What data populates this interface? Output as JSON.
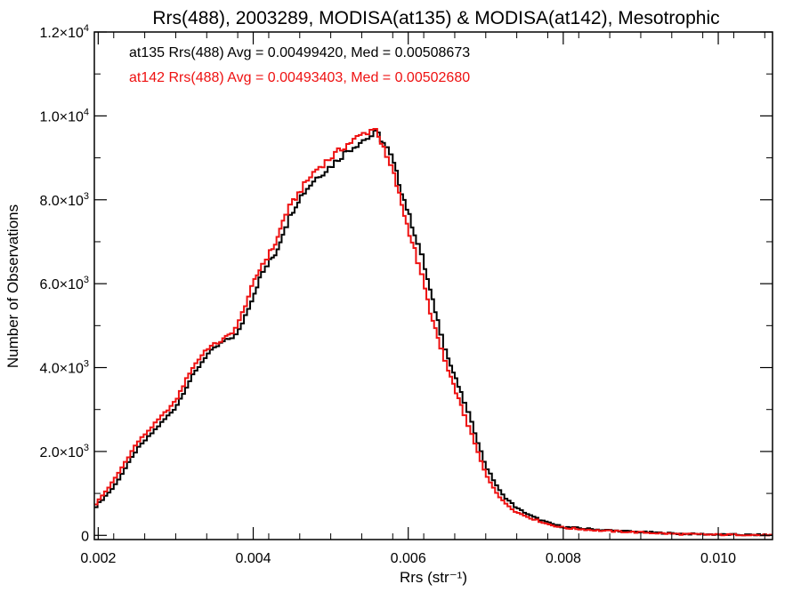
{
  "chart_data": {
    "type": "line",
    "style": "histogram-step",
    "title": "Rrs(488), 2003289, MODISA(at135) & MODISA(at142), Mesotrophic",
    "xlabel": "Rrs (str⁻¹)",
    "ylabel": "Number of Observations",
    "xlim": [
      0.00195,
      0.0107
    ],
    "ylim": [
      -100,
      12000
    ],
    "x_ticks": [
      {
        "value": 0.002,
        "label": "0.002"
      },
      {
        "value": 0.004,
        "label": "0.004"
      },
      {
        "value": 0.006,
        "label": "0.006"
      },
      {
        "value": 0.008,
        "label": "0.008"
      },
      {
        "value": 0.01,
        "label": "0.010"
      }
    ],
    "y_ticks": [
      {
        "value": 0,
        "mantissa": "0",
        "exp": ""
      },
      {
        "value": 2000,
        "mantissa": "2.0×10",
        "exp": "3"
      },
      {
        "value": 4000,
        "mantissa": "4.0×10",
        "exp": "3"
      },
      {
        "value": 6000,
        "mantissa": "6.0×10",
        "exp": "3"
      },
      {
        "value": 8000,
        "mantissa": "8.0×10",
        "exp": "3"
      },
      {
        "value": 10000,
        "mantissa": "1.0×10",
        "exp": "4"
      },
      {
        "value": 12000,
        "mantissa": "1.2×10",
        "exp": "4"
      }
    ],
    "grid": false,
    "legend_position": "top-left",
    "annotations": [
      {
        "text": "at135 Rrs(488) Avg = 0.00499420, Med = 0.00508673",
        "color": "#000000"
      },
      {
        "text": "at142 Rrs(488) Avg = 0.00493403, Med = 0.00502680",
        "color": "#ee1111"
      }
    ],
    "series": [
      {
        "color": "#000000",
        "x": [
          0.00195,
          0.0022,
          0.0025,
          0.0028,
          0.003,
          0.0032,
          0.0034,
          0.0036,
          0.0037,
          0.0038,
          0.004,
          0.0041,
          0.0042,
          0.0043,
          0.0044,
          0.0045,
          0.0046,
          0.0048,
          0.005,
          0.0052,
          0.0054,
          0.0055,
          0.00555,
          0.0056,
          0.0057,
          0.0058,
          0.0059,
          0.006,
          0.0061,
          0.0062,
          0.0063,
          0.0064,
          0.0065,
          0.0066,
          0.0067,
          0.0068,
          0.007,
          0.0072,
          0.0074,
          0.0076,
          0.0078,
          0.008,
          0.0085,
          0.009,
          0.0095,
          0.01,
          0.0105,
          0.0107
        ],
        "y": [
          650,
          1150,
          2050,
          2650,
          3050,
          3750,
          4300,
          4600,
          4700,
          4800,
          5700,
          6200,
          6500,
          6750,
          7300,
          7700,
          8050,
          8500,
          8800,
          9150,
          9400,
          9500,
          9550,
          9600,
          9300,
          8950,
          8300,
          7700,
          7100,
          6500,
          5700,
          5000,
          4300,
          3800,
          3300,
          2800,
          1650,
          1000,
          650,
          450,
          300,
          200,
          130,
          80,
          40,
          20,
          10,
          5
        ]
      },
      {
        "color": "#ee1111",
        "x": [
          0.00195,
          0.0022,
          0.0025,
          0.0028,
          0.003,
          0.0032,
          0.0034,
          0.0036,
          0.0037,
          0.0038,
          0.004,
          0.0041,
          0.0042,
          0.0043,
          0.0044,
          0.0045,
          0.0046,
          0.0048,
          0.005,
          0.0052,
          0.0054,
          0.0055,
          0.00555,
          0.0056,
          0.0057,
          0.0058,
          0.0059,
          0.006,
          0.0061,
          0.0062,
          0.0063,
          0.0064,
          0.0065,
          0.0066,
          0.0067,
          0.0068,
          0.007,
          0.0072,
          0.0074,
          0.0076,
          0.0078,
          0.008,
          0.0085,
          0.009,
          0.0095,
          0.01,
          0.0105,
          0.0107
        ],
        "y": [
          700,
          1300,
          2200,
          2800,
          3200,
          3950,
          4450,
          4650,
          4800,
          5000,
          6000,
          6400,
          6700,
          7000,
          7600,
          7900,
          8200,
          8700,
          9000,
          9300,
          9550,
          9650,
          9700,
          9650,
          9100,
          8700,
          8000,
          7300,
          6700,
          6000,
          5200,
          4600,
          4000,
          3500,
          3000,
          2500,
          1450,
          850,
          550,
          400,
          270,
          180,
          110,
          70,
          30,
          15,
          8,
          4
        ]
      }
    ]
  }
}
